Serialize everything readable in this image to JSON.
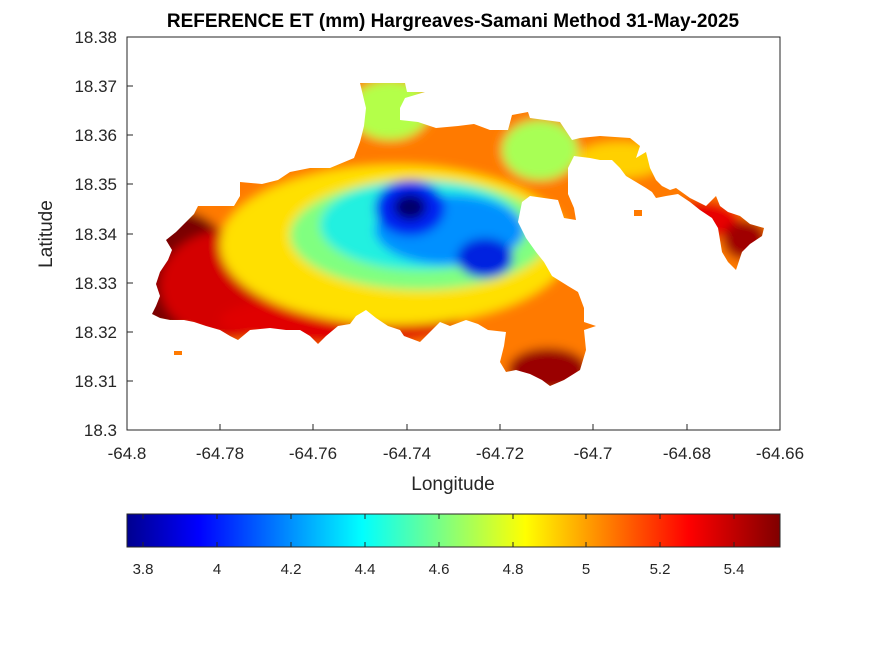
{
  "chart_data": {
    "type": "heatmap",
    "title": "REFERENCE ET (mm) Hargreaves-Samani Method  31-May-2025",
    "xlabel": "Longitude",
    "ylabel": "Latitude",
    "xlim": [
      -64.8,
      -64.66
    ],
    "ylim": [
      18.3,
      18.38
    ],
    "x_ticks": [
      "-64.8",
      "-64.78",
      "-64.76",
      "-64.74",
      "-64.72",
      "-64.7",
      "-64.68",
      "-64.66"
    ],
    "y_ticks": [
      "18.3",
      "18.31",
      "18.32",
      "18.33",
      "18.34",
      "18.35",
      "18.36",
      "18.37",
      "18.38"
    ],
    "colorbar": {
      "colormap": "jet",
      "range": [
        3.75,
        5.52
      ],
      "ticks": [
        "3.8",
        "4",
        "4.2",
        "4.4",
        "4.6",
        "4.8",
        "5",
        "5.2",
        "5.4"
      ],
      "colors": [
        "#00008f",
        "#0000ff",
        "#00ffff",
        "#ffff00",
        "#ff0000",
        "#800000"
      ]
    },
    "grid": false,
    "features": [
      {
        "name": "minimum",
        "lon": -64.738,
        "lat": 18.3455,
        "value": 3.8
      },
      {
        "name": "secondary minimum",
        "lon": -64.725,
        "lat": 18.3352,
        "value": 3.9
      },
      {
        "name": "western maximum",
        "lon": -64.793,
        "lat": 18.3335,
        "value": 5.5
      },
      {
        "name": "eastern maximum",
        "lon": -64.665,
        "lat": 18.341,
        "value": 5.5
      },
      {
        "name": "south-east maximum",
        "lon": -64.708,
        "lat": 18.309,
        "value": 5.5
      }
    ]
  }
}
